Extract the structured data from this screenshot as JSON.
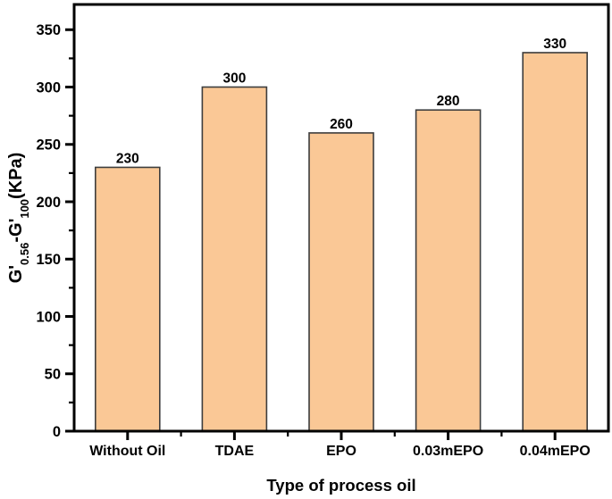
{
  "chart_data": {
    "type": "bar",
    "title": "",
    "categories": [
      "Without Oil",
      "TDAE",
      "EPO",
      "0.03mEPO",
      "0.04mEPO"
    ],
    "values": [
      230,
      300,
      260,
      280,
      330
    ],
    "value_labels": [
      "230",
      "300",
      "260",
      "280",
      "330"
    ],
    "xlabel": "Type of process oil",
    "ylabel": "G'0.56-G'100(KPa)",
    "ylabel_parts": [
      {
        "text": "G'",
        "sub": false
      },
      {
        "text": "0.56",
        "sub": true
      },
      {
        "text": "-G'",
        "sub": false
      },
      {
        "text": "100",
        "sub": true
      },
      {
        "text": "(KPa)",
        "sub": false
      }
    ],
    "ylim": [
      0,
      372
    ],
    "yticks_major": [
      0,
      50,
      100,
      150,
      200,
      250,
      300,
      350
    ],
    "ytick_minor_step": 25,
    "grid": false,
    "legend": null,
    "colors": {
      "bar_fill": "#FAC896",
      "bar_edge": "#3d3d3d",
      "frame": "#000000",
      "text": "#000000"
    }
  }
}
